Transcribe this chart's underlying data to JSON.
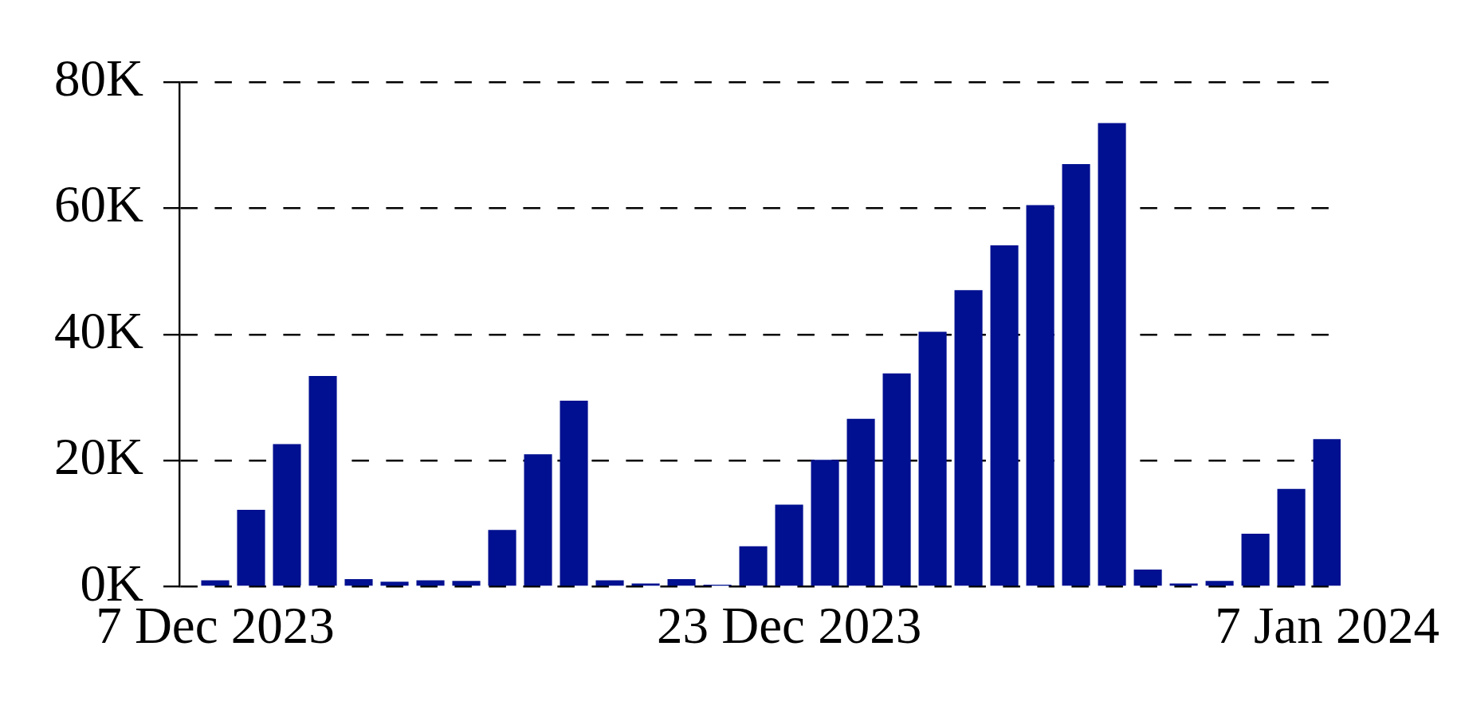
{
  "chart_data": {
    "type": "bar",
    "x": [
      "2023-12-07",
      "2023-12-08",
      "2023-12-09",
      "2023-12-10",
      "2023-12-11",
      "2023-12-12",
      "2023-12-13",
      "2023-12-14",
      "2023-12-15",
      "2023-12-16",
      "2023-12-17",
      "2023-12-18",
      "2023-12-19",
      "2023-12-20",
      "2023-12-21",
      "2023-12-22",
      "2023-12-23",
      "2023-12-24",
      "2023-12-25",
      "2023-12-26",
      "2023-12-27",
      "2023-12-28",
      "2023-12-29",
      "2023-12-30",
      "2023-12-31",
      "2024-01-01",
      "2024-01-02",
      "2024-01-03",
      "2024-01-04",
      "2024-01-05",
      "2024-01-06",
      "2024-01-07"
    ],
    "values": [
      1000,
      12200,
      22600,
      33400,
      1200,
      800,
      1000,
      900,
      9000,
      21000,
      29500,
      1000,
      500,
      1200,
      300,
      6400,
      13000,
      20100,
      26600,
      33800,
      40400,
      47000,
      54100,
      60500,
      67000,
      73500,
      2700,
      500,
      900,
      8400,
      15500,
      23400
    ],
    "color": "#001090",
    "xlim": [
      "2023-12-06",
      "2024-01-07T09:00"
    ],
    "xticks": [
      {
        "value": "2023-12-07",
        "label": "7 Dec 2023"
      },
      {
        "value": "2023-12-23",
        "label": "23 Dec 2023"
      },
      {
        "value": "2024-01-07",
        "label": "7 Jan 2024"
      }
    ],
    "ylim": [
      0,
      80000
    ],
    "yticks": [
      {
        "value": 0,
        "label": "0K"
      },
      {
        "value": 20000,
        "label": "20K"
      },
      {
        "value": 40000,
        "label": "40K"
      },
      {
        "value": 60000,
        "label": "60K"
      },
      {
        "value": 80000,
        "label": "80K"
      }
    ],
    "grid": "y"
  }
}
